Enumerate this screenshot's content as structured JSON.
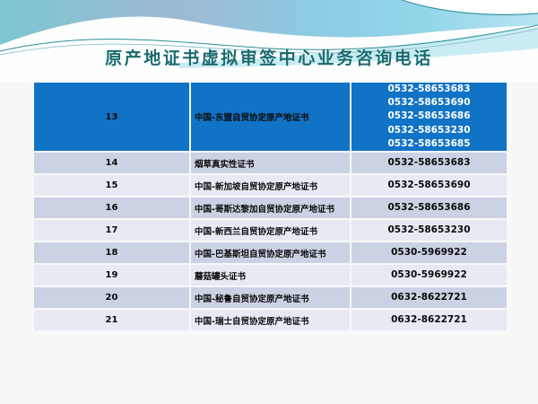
{
  "slide": {
    "title": "原产地证书虚拟审签中心业务咨询电话"
  },
  "table": {
    "rows": [
      {
        "no": "13",
        "name": "中国-东盟自贸协定原产地证书",
        "phones": [
          "0532-58653683",
          "0532-58653690",
          "0532-58653686",
          "0532-58653230",
          "0532-58653685"
        ],
        "highlight": true
      },
      {
        "no": "14",
        "name": "烟草真实性证书",
        "phones": [
          "0532-58653683"
        ]
      },
      {
        "no": "15",
        "name": "中国-新加坡自贸协定原产地证书",
        "phones": [
          "0532-58653690"
        ]
      },
      {
        "no": "16",
        "name": "中国-哥斯达黎加自贸协定原产地证书",
        "phones": [
          "0532-58653686"
        ]
      },
      {
        "no": "17",
        "name": "中国-新西兰自贸协定原产地证书",
        "phones": [
          "0532-58653230"
        ]
      },
      {
        "no": "18",
        "name": "中国-巴基斯坦自贸协定原产地证书",
        "phones": [
          "0530-5969922"
        ]
      },
      {
        "no": "19",
        "name": "蘑菇罐头证书",
        "phones": [
          "0530-5969922"
        ]
      },
      {
        "no": "20",
        "name": "中国-秘鲁自贸协定原产地证书",
        "phones": [
          "0632-8622721"
        ]
      },
      {
        "no": "21",
        "name": "中国-瑞士自贸协定原产地证书",
        "phones": [
          "0632-8622721"
        ]
      }
    ],
    "colors": {
      "highlight_row": "#1173c5",
      "row_even": "#cad2e3",
      "row_odd": "#e7eaf3",
      "highlight_phone_text": "#ffffff",
      "text": "#0b0b0b",
      "grid_line": "#ffffff"
    }
  },
  "decor": {
    "title_color": "#1a6b70",
    "sky_teal": "#7cc6cf",
    "sky_gray_blue": "#9db9d3",
    "sky_light_blue": "#93d7ea",
    "sky_pale_cyan": "#b7e4f0",
    "wave_white": "#fdfefe",
    "wave_cyan_band": "#c9ecf4",
    "wave_line_teal": "#2f8f97",
    "wave_line_soft": "#7db9c4"
  }
}
